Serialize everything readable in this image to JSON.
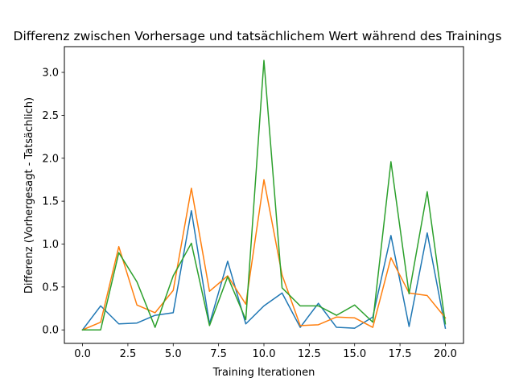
{
  "chart_data": {
    "type": "line",
    "title": "Differenz zwischen Vorhersage und tatsächlichem Wert während des Trainings",
    "xlabel": "Training Iterationen",
    "ylabel": "Differenz (Vorhergesagt - Tatsächlich)",
    "xlim": [
      -1.0,
      21.0
    ],
    "ylim": [
      -0.157,
      3.3
    ],
    "x_ticks": [
      0.0,
      2.5,
      5.0,
      7.5,
      10.0,
      12.5,
      15.0,
      17.5,
      20.0
    ],
    "x_tick_labels": [
      "0.0",
      "2.5",
      "5.0",
      "7.5",
      "10.0",
      "12.5",
      "15.0",
      "17.5",
      "20.0"
    ],
    "y_ticks": [
      0.0,
      0.5,
      1.0,
      1.5,
      2.0,
      2.5,
      3.0
    ],
    "y_tick_labels": [
      "0.0",
      "0.5",
      "1.0",
      "1.5",
      "2.0",
      "2.5",
      "3.0"
    ],
    "grid": false,
    "legend": "none",
    "x": [
      0,
      1,
      2,
      3,
      4,
      5,
      6,
      7,
      8,
      9,
      10,
      11,
      12,
      13,
      14,
      15,
      16,
      17,
      18,
      19,
      20
    ],
    "series": [
      {
        "color": "#1f77b4",
        "values": [
          0.0,
          0.28,
          0.07,
          0.08,
          0.17,
          0.2,
          1.39,
          0.07,
          0.8,
          0.07,
          0.28,
          0.43,
          0.03,
          0.31,
          0.03,
          0.02,
          0.15,
          1.1,
          0.04,
          1.13,
          0.02
        ]
      },
      {
        "color": "#ff7f0e",
        "values": [
          0.0,
          0.09,
          0.97,
          0.29,
          0.2,
          0.46,
          1.65,
          0.45,
          0.63,
          0.3,
          1.75,
          0.64,
          0.05,
          0.06,
          0.15,
          0.14,
          0.03,
          0.84,
          0.43,
          0.4,
          0.14
        ]
      },
      {
        "color": "#2ca02c",
        "values": [
          0.0,
          0.0,
          0.9,
          0.56,
          0.03,
          0.63,
          1.01,
          0.05,
          0.62,
          0.12,
          3.14,
          0.49,
          0.28,
          0.28,
          0.17,
          0.29,
          0.09,
          1.96,
          0.42,
          1.61,
          0.07
        ]
      }
    ]
  }
}
